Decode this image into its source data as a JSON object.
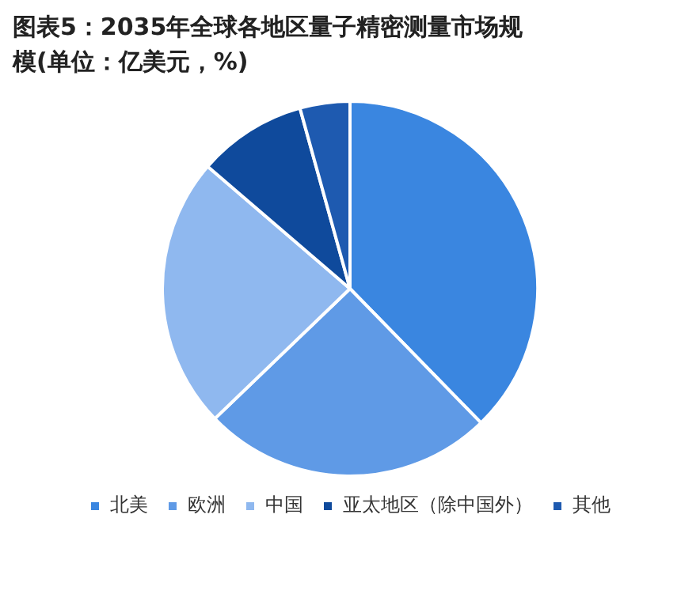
{
  "chart_data": {
    "type": "pie",
    "title": "图表5：2035年全球各地区量子精密测量市场规模(单位：亿美元，%)",
    "categories": [
      "北美",
      "欧洲",
      "中国",
      "亚太地区（除中国外）",
      "其他"
    ],
    "values": [
      37.7,
      25.1,
      23.5,
      9.4,
      4.3
    ],
    "colors": [
      "#3a86e0",
      "#5f9ae6",
      "#8fb8ef",
      "#0f4a9c",
      "#1e5ab0"
    ],
    "legend": "bottom"
  }
}
